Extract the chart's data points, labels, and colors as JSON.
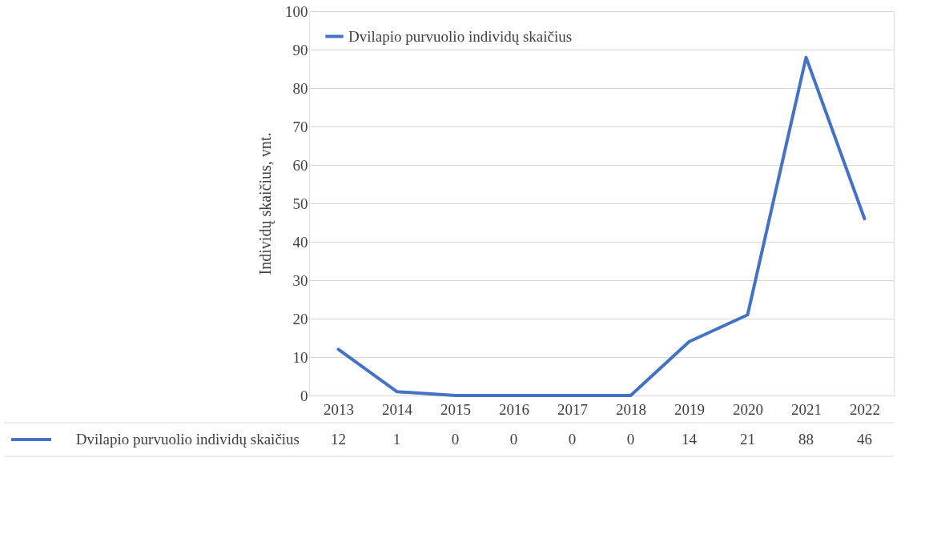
{
  "chart_data": {
    "type": "line",
    "ylabel": "Individų skaičius, vnt.",
    "categories": [
      "2013",
      "2014",
      "2015",
      "2016",
      "2017",
      "2018",
      "2019",
      "2020",
      "2021",
      "2022"
    ],
    "series": [
      {
        "name": "Dvilapio purvuolio individų skaičius",
        "color": "#4472c4",
        "values": [
          12,
          1,
          0,
          0,
          0,
          0,
          14,
          21,
          88,
          46
        ]
      }
    ],
    "ylim": [
      0,
      100
    ],
    "yticks": [
      0,
      10,
      20,
      30,
      40,
      50,
      60,
      70,
      80,
      90,
      100
    ],
    "grid": "y",
    "legend": "top left",
    "data_labels": true,
    "marker": "none",
    "line_style": "solid"
  }
}
